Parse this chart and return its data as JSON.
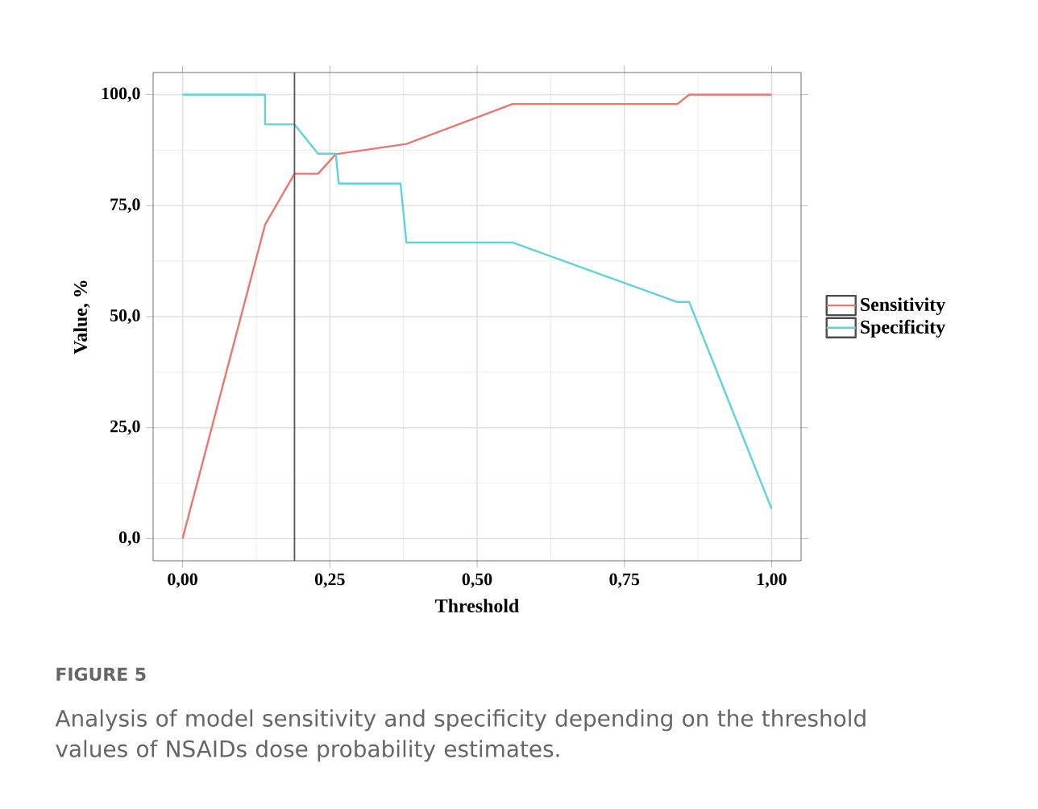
{
  "chart_data": {
    "type": "line",
    "xlabel": "Threshold",
    "ylabel": "Value, %",
    "xlim": [
      -0.05,
      1.05
    ],
    "ylim": [
      -5,
      105
    ],
    "xticks": [
      {
        "value": 0,
        "label": "0,00"
      },
      {
        "value": 0.25,
        "label": "0,25"
      },
      {
        "value": 0.5,
        "label": "0,50"
      },
      {
        "value": 0.75,
        "label": "0,75"
      },
      {
        "value": 1,
        "label": "1,00"
      }
    ],
    "yticks": [
      {
        "value": 0,
        "label": "0,0"
      },
      {
        "value": 25,
        "label": "25,0"
      },
      {
        "value": 50,
        "label": "50,0"
      },
      {
        "value": 75,
        "label": "75,0"
      },
      {
        "value": 100,
        "label": "100,0"
      }
    ],
    "grid": true,
    "legend": "right",
    "marker": "none",
    "line_style": "solid",
    "series": [
      {
        "name": "Sensitivity",
        "color": "#e8776f",
        "x": [
          0,
          0.14,
          0.19,
          0.23,
          0.26,
          0.38,
          0.56,
          0.84,
          0.86,
          1.0
        ],
        "values": [
          0,
          70.7,
          82.2,
          82.2,
          86.6,
          88.9,
          97.9,
          97.9,
          100,
          100
        ]
      },
      {
        "name": "Specificity",
        "color": "#5fd3da",
        "x": [
          0,
          0.14,
          0.14,
          0.19,
          0.23,
          0.26,
          0.265,
          0.37,
          0.38,
          0.56,
          0.84,
          0.86,
          1.0
        ],
        "values": [
          100,
          100,
          93.3,
          93.3,
          86.7,
          86.7,
          80,
          80,
          66.7,
          66.7,
          53.3,
          53.3,
          6.7
        ]
      }
    ],
    "ref_lines": [
      {
        "axis": "x",
        "value": 0.19,
        "color": "#555555"
      }
    ],
    "annotations": [
      "FIGURE 5",
      "Analysis of model sensitivity and specificity depending on the threshold values of NSAIDs dose probability estimates."
    ]
  }
}
